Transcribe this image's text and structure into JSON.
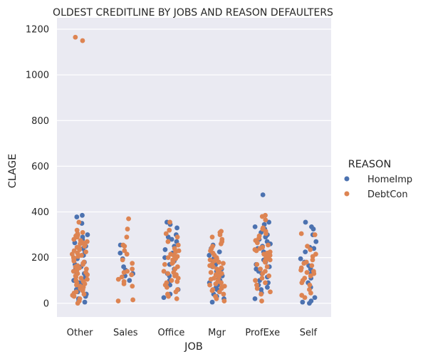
{
  "chart_data": {
    "type": "scatter",
    "subtype": "strip",
    "title": "OLDEST CREDITLINE BY JOBS AND REASON DEFAULTERS",
    "xlabel": "JOB",
    "ylabel": "CLAGE",
    "categories": [
      "Other",
      "Sales",
      "Office",
      "Mgr",
      "ProfExe",
      "Self"
    ],
    "ylim": [
      -60,
      1250
    ],
    "yticks": [
      0,
      200,
      400,
      600,
      800,
      1000,
      1200
    ],
    "grid": true,
    "legend": {
      "title": "REASON",
      "position": "right",
      "entries": [
        "HomeImp",
        "DebtCon"
      ]
    },
    "colors": {
      "HomeImp": "#4c72b0",
      "DebtCon": "#dd8452",
      "background": "#eaeaf2",
      "grid": "#ffffff"
    },
    "series": [
      {
        "name": "HomeImp",
        "points": {
          "Other": [
            385,
            378,
            350,
            300,
            290,
            280,
            265,
            250,
            240,
            225,
            210,
            195,
            180,
            170,
            160,
            150,
            140,
            130,
            120,
            110,
            100,
            90,
            80,
            70,
            60,
            50,
            40,
            30,
            20,
            10,
            5
          ],
          "Sales": [
            255,
            220,
            195,
            160,
            145,
            130,
            120,
            100
          ],
          "Office": [
            355,
            345,
            330,
            300,
            290,
            280,
            270,
            250,
            235,
            220,
            200,
            185,
            170,
            150,
            130,
            120,
            100,
            80,
            60,
            40,
            25
          ],
          "Mgr": [
            255,
            240,
            225,
            210,
            195,
            180,
            170,
            160,
            150,
            140,
            130,
            120,
            110,
            100,
            90,
            80,
            70,
            60,
            50,
            40,
            30,
            20,
            5
          ],
          "ProfExe": [
            475,
            355,
            345,
            335,
            325,
            320,
            310,
            300,
            290,
            280,
            270,
            260,
            250,
            240,
            225,
            215,
            200,
            190,
            180,
            170,
            160,
            150,
            140,
            130,
            115,
            100,
            90,
            80,
            70,
            60,
            45,
            20
          ],
          "Self": [
            355,
            335,
            325,
            300,
            270,
            245,
            240,
            225,
            195,
            180,
            165,
            150,
            130,
            110,
            90,
            70,
            25,
            10,
            5,
            0
          ]
        }
      },
      {
        "name": "DebtCon",
        "points": {
          "Other": [
            1165,
            1150,
            355,
            320,
            310,
            305,
            300,
            295,
            290,
            280,
            275,
            270,
            265,
            260,
            255,
            250,
            245,
            240,
            235,
            230,
            225,
            220,
            215,
            210,
            205,
            200,
            195,
            190,
            185,
            180,
            175,
            170,
            165,
            160,
            155,
            150,
            145,
            140,
            135,
            130,
            125,
            120,
            115,
            110,
            105,
            100,
            95,
            90,
            85,
            80,
            75,
            70,
            65,
            60,
            55,
            50,
            45,
            40,
            35,
            30,
            20,
            10,
            0
          ],
          "Sales": [
            370,
            325,
            290,
            255,
            250,
            230,
            215,
            190,
            175,
            150,
            140,
            135,
            125,
            115,
            105,
            95,
            85,
            75,
            15,
            10
          ],
          "Office": [
            355,
            320,
            305,
            290,
            270,
            255,
            240,
            230,
            225,
            215,
            210,
            205,
            200,
            195,
            190,
            180,
            175,
            170,
            160,
            150,
            140,
            135,
            130,
            125,
            120,
            110,
            100,
            95,
            90,
            80,
            70,
            60,
            50,
            40,
            30,
            20
          ],
          "Mgr": [
            315,
            310,
            300,
            290,
            280,
            270,
            260,
            250,
            240,
            230,
            220,
            210,
            200,
            195,
            190,
            185,
            180,
            175,
            170,
            165,
            160,
            155,
            150,
            145,
            140,
            135,
            130,
            125,
            120,
            115,
            110,
            105,
            100,
            95,
            90,
            85,
            80,
            75,
            70,
            65,
            60,
            55,
            50,
            40,
            30,
            20,
            10
          ],
          "ProfExe": [
            385,
            380,
            365,
            330,
            325,
            315,
            305,
            295,
            285,
            275,
            265,
            255,
            245,
            240,
            235,
            230,
            225,
            220,
            215,
            210,
            205,
            200,
            195,
            190,
            185,
            180,
            170,
            160,
            150,
            140,
            130,
            120,
            110,
            100,
            90,
            80,
            65,
            50,
            40,
            10
          ],
          "Self": [
            305,
            300,
            250,
            235,
            215,
            205,
            190,
            180,
            175,
            165,
            155,
            145,
            140,
            135,
            130,
            120,
            110,
            100,
            90,
            80,
            60,
            45,
            35,
            25
          ]
        }
      }
    ]
  }
}
